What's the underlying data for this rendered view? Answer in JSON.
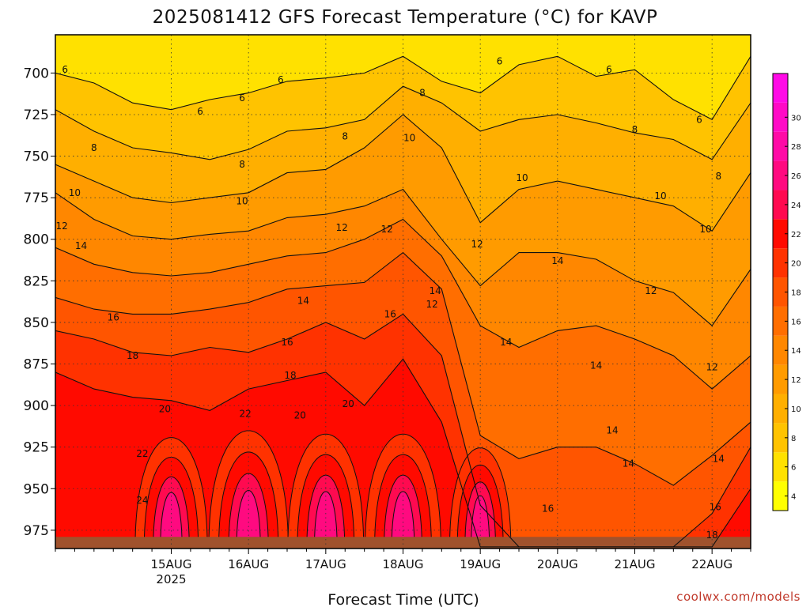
{
  "chart_data": {
    "type": "heatmap",
    "title": "2025081412 GFS Forecast Temperature (°C) for KAVP",
    "xlabel": "Forecast Time (UTC)",
    "ylabel": "",
    "credit": "coolwx.com/models",
    "y_scale": "pressure (hPa), increasing downward",
    "ylim": [
      986,
      677
    ],
    "y_ticks": [
      700,
      725,
      750,
      775,
      800,
      825,
      850,
      875,
      900,
      925,
      950,
      975
    ],
    "xlim": [
      -36,
      180
    ],
    "x_ticks": [
      {
        "hour": 0,
        "label": "15AUG",
        "sublabel": "2025"
      },
      {
        "hour": 24,
        "label": "16AUG",
        "sublabel": ""
      },
      {
        "hour": 48,
        "label": "17AUG",
        "sublabel": ""
      },
      {
        "hour": 72,
        "label": "18AUG",
        "sublabel": ""
      },
      {
        "hour": 96,
        "label": "19AUG",
        "sublabel": ""
      },
      {
        "hour": 120,
        "label": "20AUG",
        "sublabel": ""
      },
      {
        "hour": 144,
        "label": "21AUG",
        "sublabel": ""
      },
      {
        "hour": 168,
        "label": "22AUG",
        "sublabel": ""
      }
    ],
    "grid": true,
    "colorbar": {
      "ticks": [
        4,
        6,
        8,
        10,
        12,
        14,
        16,
        18,
        20,
        22,
        24,
        26,
        28,
        30
      ],
      "range": [
        3,
        33
      ],
      "colors": [
        "#ffff00",
        "#ffe100",
        "#ffc300",
        "#ffaf00",
        "#ff9b00",
        "#ff8700",
        "#ff6e00",
        "#ff5500",
        "#ff3200",
        "#ff0a00",
        "#ff0a50",
        "#ff0a80",
        "#ff0aa6",
        "#ff0ac6",
        "#ff0ae6"
      ],
      "placement": "right"
    },
    "series": [
      {
        "name": "6",
        "x": [
          -36,
          -24,
          -12,
          0,
          12,
          24,
          36,
          48,
          60,
          72,
          84,
          96,
          108,
          120,
          132,
          144,
          156,
          168,
          180
        ],
        "y": [
          700,
          706,
          718,
          722,
          716,
          712,
          705,
          703,
          700,
          690,
          705,
          712,
          695,
          690,
          702,
          698,
          716,
          728,
          690
        ]
      },
      {
        "name": "8",
        "x": [
          -36,
          -24,
          -12,
          0,
          12,
          24,
          36,
          48,
          60,
          72,
          84,
          96,
          108,
          120,
          132,
          144,
          156,
          168,
          180
        ],
        "y": [
          722,
          735,
          745,
          748,
          752,
          746,
          735,
          733,
          728,
          708,
          718,
          735,
          728,
          725,
          730,
          736,
          740,
          752,
          718
        ]
      },
      {
        "name": "10",
        "x": [
          -36,
          -24,
          -12,
          0,
          12,
          24,
          36,
          48,
          60,
          72,
          84,
          96,
          108,
          120,
          132,
          144,
          156,
          168,
          180
        ],
        "y": [
          755,
          765,
          775,
          778,
          775,
          772,
          760,
          758,
          745,
          725,
          745,
          790,
          770,
          765,
          770,
          775,
          780,
          795,
          760
        ]
      },
      {
        "name": "12",
        "x": [
          -36,
          -24,
          -12,
          0,
          12,
          24,
          36,
          48,
          60,
          72,
          84,
          96,
          108,
          120,
          132,
          144,
          156,
          168,
          180
        ],
        "y": [
          772,
          788,
          798,
          800,
          797,
          795,
          787,
          785,
          780,
          770,
          800,
          828,
          808,
          808,
          812,
          825,
          832,
          852,
          818
        ]
      },
      {
        "name": "14",
        "x": [
          -36,
          -24,
          -12,
          0,
          12,
          24,
          36,
          48,
          60,
          72,
          84,
          96,
          108,
          120,
          132,
          144,
          156,
          168,
          180
        ],
        "y": [
          805,
          815,
          820,
          822,
          820,
          815,
          810,
          808,
          800,
          788,
          810,
          852,
          865,
          855,
          852,
          860,
          870,
          890,
          870
        ]
      },
      {
        "name": "16",
        "x": [
          -36,
          -24,
          -12,
          0,
          12,
          24,
          36,
          48,
          60,
          72,
          84,
          96,
          108,
          120,
          132,
          144,
          156,
          168,
          180
        ],
        "y": [
          835,
          842,
          845,
          845,
          842,
          838,
          830,
          828,
          826,
          808,
          830,
          918,
          932,
          925,
          925,
          935,
          948,
          930,
          910
        ]
      },
      {
        "name": "18",
        "x": [
          -36,
          -24,
          -12,
          0,
          12,
          24,
          36,
          48,
          60,
          72,
          84,
          96,
          108,
          120,
          132,
          144,
          156,
          168,
          180
        ],
        "y": [
          855,
          860,
          868,
          870,
          865,
          868,
          860,
          850,
          860,
          845,
          870,
          960,
          985,
          985,
          985,
          985,
          985,
          965,
          925
        ]
      },
      {
        "name": "20",
        "x": [
          -36,
          -24,
          -12,
          0,
          12,
          24,
          36,
          48,
          60,
          72,
          84,
          96,
          108,
          120,
          132,
          144,
          156,
          168,
          180
        ],
        "y": [
          880,
          890,
          895,
          897,
          903,
          890,
          885,
          880,
          900,
          872,
          910,
          985,
          985,
          985,
          985,
          985,
          985,
          985,
          950
        ]
      }
    ],
    "contour_labels": [
      {
        "text": "6",
        "x": -33,
        "y": 698
      },
      {
        "text": "6",
        "x": 9,
        "y": 723
      },
      {
        "text": "6",
        "x": 22,
        "y": 715
      },
      {
        "text": "6",
        "x": 34,
        "y": 704
      },
      {
        "text": "6",
        "x": 102,
        "y": 693
      },
      {
        "text": "6",
        "x": 136,
        "y": 698
      },
      {
        "text": "6",
        "x": 164,
        "y": 728
      },
      {
        "text": "8",
        "x": -24,
        "y": 745
      },
      {
        "text": "8",
        "x": 22,
        "y": 755
      },
      {
        "text": "8",
        "x": 54,
        "y": 738
      },
      {
        "text": "8",
        "x": 78,
        "y": 712
      },
      {
        "text": "8",
        "x": 144,
        "y": 734
      },
      {
        "text": "8",
        "x": 170,
        "y": 762
      },
      {
        "text": "10",
        "x": -30,
        "y": 772
      },
      {
        "text": "10",
        "x": 22,
        "y": 777
      },
      {
        "text": "10",
        "x": 74,
        "y": 739
      },
      {
        "text": "10",
        "x": 109,
        "y": 763
      },
      {
        "text": "10",
        "x": 152,
        "y": 774
      },
      {
        "text": "10",
        "x": 166,
        "y": 794
      },
      {
        "text": "12",
        "x": -34,
        "y": 792
      },
      {
        "text": "12",
        "x": 53,
        "y": 793
      },
      {
        "text": "12",
        "x": 67,
        "y": 794
      },
      {
        "text": "12",
        "x": 95,
        "y": 803
      },
      {
        "text": "12",
        "x": 81,
        "y": 839
      },
      {
        "text": "12",
        "x": 149,
        "y": 831
      },
      {
        "text": "12",
        "x": 168,
        "y": 877
      },
      {
        "text": "14",
        "x": -28,
        "y": 804
      },
      {
        "text": "14",
        "x": 41,
        "y": 837
      },
      {
        "text": "14",
        "x": 82,
        "y": 831
      },
      {
        "text": "14",
        "x": 120,
        "y": 813
      },
      {
        "text": "14",
        "x": 104,
        "y": 862
      },
      {
        "text": "14",
        "x": 132,
        "y": 876
      },
      {
        "text": "14",
        "x": 137,
        "y": 915
      },
      {
        "text": "14",
        "x": 142,
        "y": 935
      },
      {
        "text": "14",
        "x": 170,
        "y": 932
      },
      {
        "text": "16",
        "x": -18,
        "y": 847
      },
      {
        "text": "16",
        "x": 36,
        "y": 862
      },
      {
        "text": "16",
        "x": 68,
        "y": 845
      },
      {
        "text": "16",
        "x": 117,
        "y": 962
      },
      {
        "text": "16",
        "x": 169,
        "y": 961
      },
      {
        "text": "18",
        "x": -12,
        "y": 870
      },
      {
        "text": "18",
        "x": 37,
        "y": 882
      },
      {
        "text": "18",
        "x": 168,
        "y": 978
      },
      {
        "text": "20",
        "x": -2,
        "y": 902
      },
      {
        "text": "20",
        "x": 40,
        "y": 906
      },
      {
        "text": "20",
        "x": 55,
        "y": 899
      },
      {
        "text": "22",
        "x": -9,
        "y": 929
      },
      {
        "text": "22",
        "x": 23,
        "y": 905
      },
      {
        "text": "24",
        "x": -9,
        "y": 957
      }
    ]
  }
}
